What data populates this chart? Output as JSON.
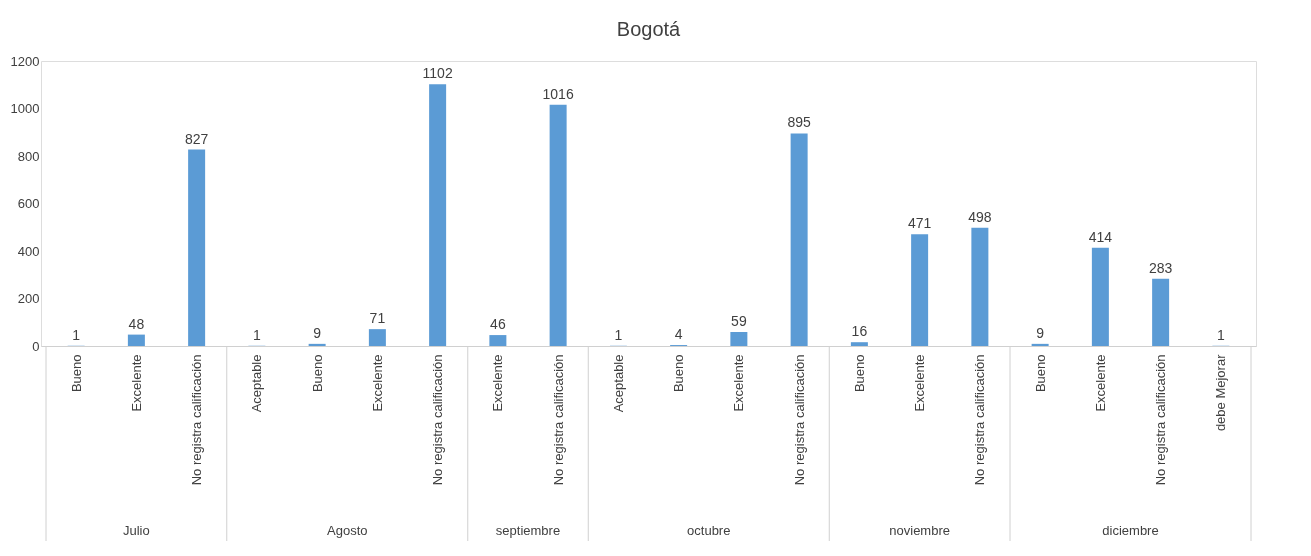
{
  "chart_data": {
    "type": "bar",
    "title": "Bogotá",
    "categories": [
      "Bueno",
      "Excelente",
      "No registra calificación",
      "Aceptable",
      "Bueno",
      "Excelente",
      "No registra calificación",
      "Excelente",
      "No registra calificación",
      "Aceptable",
      "Bueno",
      "Excelente",
      "No registra calificación",
      "Bueno",
      "Excelente",
      "No registra calificación",
      "Bueno",
      "Excelente",
      "No registra calificación",
      "debe Mejorar"
    ],
    "values": [
      1,
      48,
      827,
      1,
      9,
      71,
      1102,
      46,
      1016,
      1,
      4,
      59,
      895,
      16,
      471,
      498,
      9,
      414,
      283,
      1
    ],
    "color": "#5b9bd5",
    "ylim": [
      0,
      1200
    ],
    "yticks": [
      0,
      200,
      400,
      600,
      800,
      1000,
      1200
    ],
    "data_labels": true,
    "grid": false,
    "annotations": [
      "Julio",
      "Agosto",
      "septiembre",
      "octubre",
      "noviembre",
      "diciembre"
    ]
  }
}
